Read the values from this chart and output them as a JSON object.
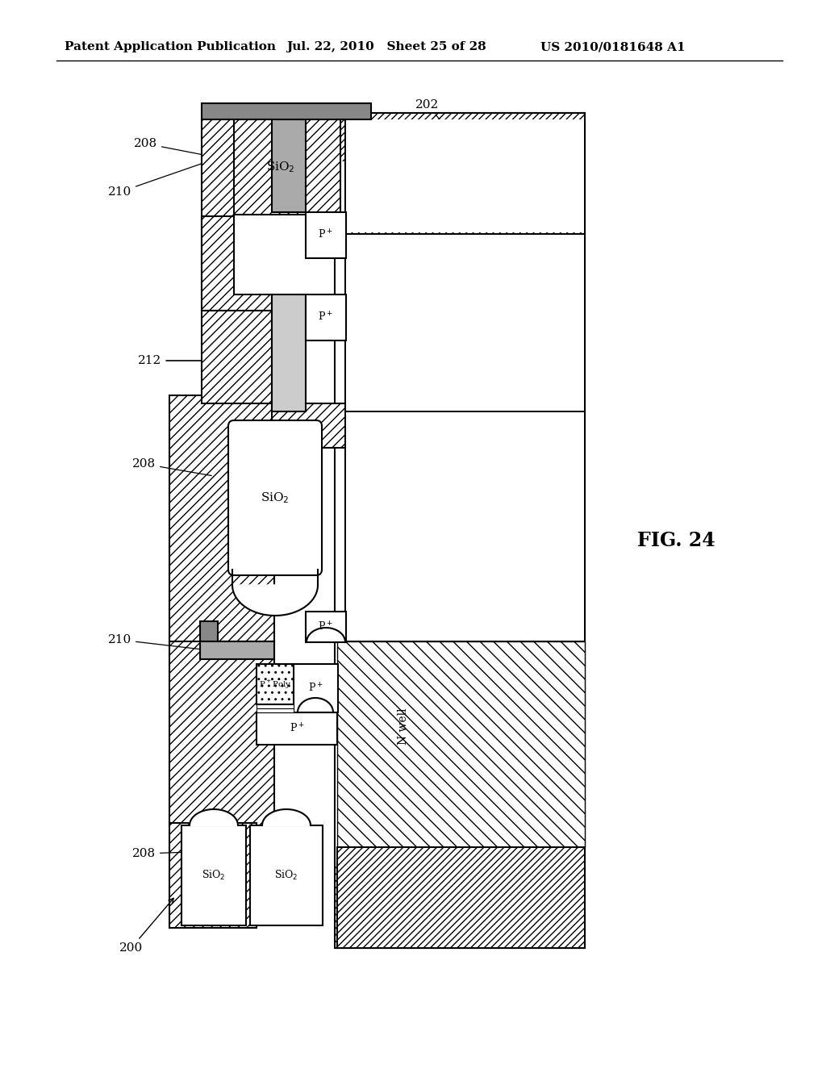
{
  "header_left": "Patent Application Publication",
  "header_mid": "Jul. 22, 2010   Sheet 25 of 28",
  "header_right": "US 2010/0181648 A1",
  "fig_label": "FIG. 24",
  "background_color": "#ffffff"
}
